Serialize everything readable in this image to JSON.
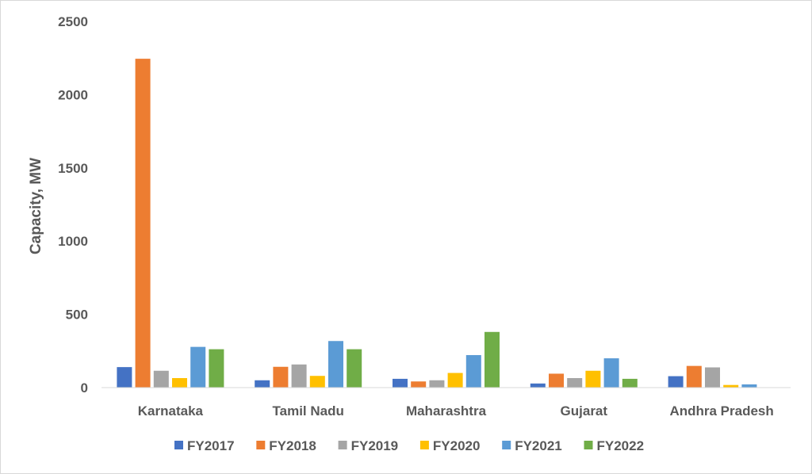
{
  "chart_data": {
    "type": "bar",
    "title": "",
    "xlabel": "",
    "ylabel": "Capacity, MW",
    "ylim": [
      0,
      2500
    ],
    "yticks": [
      0,
      500,
      1000,
      1500,
      2000,
      2500
    ],
    "grid": false,
    "legend_position": "bottom",
    "categories": [
      "Karnataka",
      "Tamil Nadu",
      "Maharashtra",
      "Gujarat",
      "Andhra Pradesh"
    ],
    "series": [
      {
        "name": "FY2017",
        "color": "#4472C4",
        "values": [
          140,
          50,
          60,
          28,
          78
        ]
      },
      {
        "name": "FY2018",
        "color": "#ED7D31",
        "values": [
          2245,
          142,
          42,
          95,
          148
        ]
      },
      {
        "name": "FY2019",
        "color": "#A5A5A5",
        "values": [
          115,
          158,
          50,
          65,
          138
        ]
      },
      {
        "name": "FY2020",
        "color": "#FFC000",
        "values": [
          65,
          80,
          100,
          115,
          18
        ]
      },
      {
        "name": "FY2021",
        "color": "#5B9BD5",
        "values": [
          278,
          318,
          222,
          200,
          22
        ]
      },
      {
        "name": "FY2022",
        "color": "#70AD47",
        "values": [
          262,
          262,
          380,
          60,
          0
        ]
      }
    ]
  }
}
